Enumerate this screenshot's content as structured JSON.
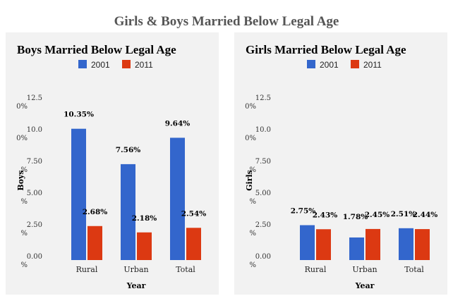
{
  "page_title": "Girls & Boys Married Below Legal Age",
  "chart_data": [
    {
      "type": "bar",
      "title": "Boys Married Below Legal Age",
      "xlabel": "Year",
      "ylabel": "Boys",
      "categories": [
        "Rural",
        "Urban",
        "Total"
      ],
      "series": [
        {
          "name": "2001",
          "color": "#3366cc",
          "values": [
            10.35,
            7.56,
            9.64
          ],
          "labels": [
            "10.35%",
            "7.56%",
            "9.64%"
          ]
        },
        {
          "name": "2011",
          "color": "#dc3912",
          "values": [
            2.68,
            2.18,
            2.54
          ],
          "labels": [
            "2.68%",
            "2.18%",
            "2.54%"
          ]
        }
      ],
      "ylim": [
        0,
        12.5
      ],
      "yticks": [
        {
          "value": 0,
          "label": "0.00",
          "unit": "%"
        },
        {
          "value": 2.5,
          "label": "2.50",
          "unit": "%"
        },
        {
          "value": 5,
          "label": "5.00",
          "unit": "%"
        },
        {
          "value": 7.5,
          "label": "7.50",
          "unit": "%"
        },
        {
          "value": 10,
          "label": "10.0",
          "unit": "0%"
        },
        {
          "value": 12.5,
          "label": "12.5",
          "unit": "0%"
        }
      ],
      "legend": "top",
      "grid": false
    },
    {
      "type": "bar",
      "title": "Girls Married Below Legal Age",
      "xlabel": "Year",
      "ylabel": "Girls",
      "categories": [
        "Rural",
        "Urban",
        "Total"
      ],
      "series": [
        {
          "name": "2001",
          "color": "#3366cc",
          "values": [
            2.75,
            1.78,
            2.51
          ],
          "labels": [
            "2.75%",
            "1.78%",
            "2.51%"
          ]
        },
        {
          "name": "2011",
          "color": "#dc3912",
          "values": [
            2.43,
            2.45,
            2.44
          ],
          "labels": [
            "2.43%",
            "2.45%",
            "2.44%"
          ]
        }
      ],
      "ylim": [
        0,
        12.5
      ],
      "yticks": [
        {
          "value": 0,
          "label": "0.00",
          "unit": "%"
        },
        {
          "value": 2.5,
          "label": "2.50",
          "unit": "%"
        },
        {
          "value": 5,
          "label": "5.00",
          "unit": "%"
        },
        {
          "value": 7.5,
          "label": "7.50",
          "unit": "%"
        },
        {
          "value": 10,
          "label": "10.0",
          "unit": "0%"
        },
        {
          "value": 12.5,
          "label": "12.5",
          "unit": "0%"
        }
      ],
      "legend": "top",
      "grid": false
    }
  ]
}
